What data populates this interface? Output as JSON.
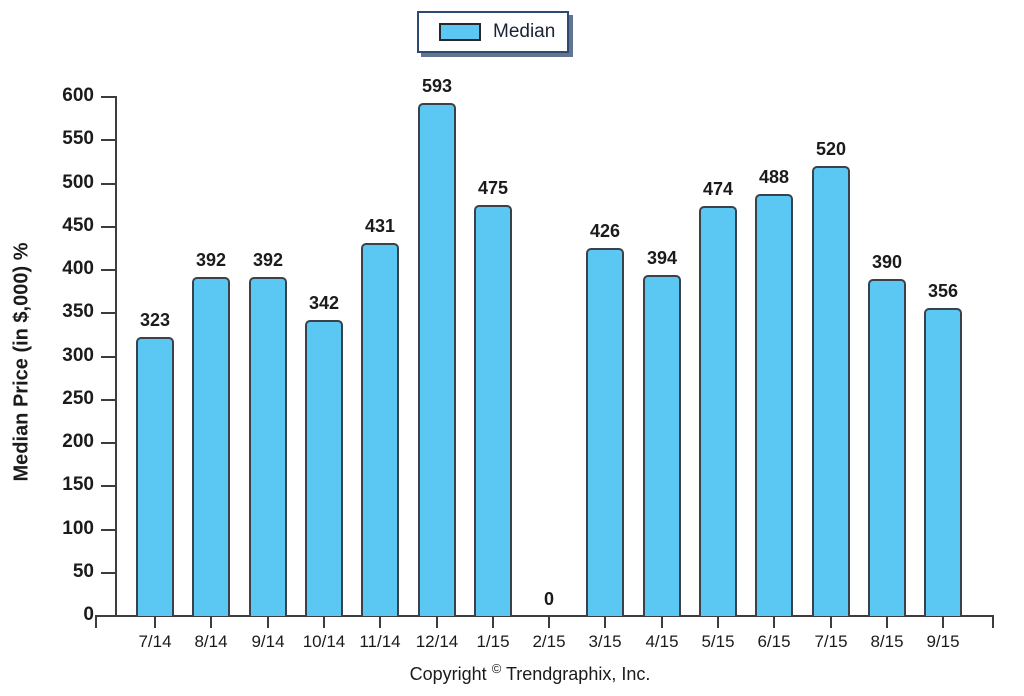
{
  "chart_data": {
    "type": "bar",
    "title": "",
    "categories": [
      "7/14",
      "8/14",
      "9/14",
      "10/14",
      "11/14",
      "12/14",
      "1/15",
      "2/15",
      "3/15",
      "4/15",
      "5/15",
      "6/15",
      "7/15",
      "8/15",
      "9/15"
    ],
    "series": [
      {
        "name": "Median",
        "values": [
          323,
          392,
          392,
          342,
          431,
          593,
          475,
          0,
          426,
          394,
          474,
          488,
          520,
          390,
          356
        ]
      }
    ],
    "xlabel": "",
    "ylabel": "Median Price (in $,000) %",
    "ylim": [
      0,
      600
    ],
    "ytick_step": 50,
    "grid": false,
    "legend_position": "top-center",
    "data_labels": true,
    "colors": {
      "bar_fill": "#5bc8f4",
      "bar_border": "#3b4148",
      "axis": "#3c3c3c",
      "text": "#1b1b1b",
      "legend_border": "#2e4a73"
    }
  },
  "legend": {
    "label": "Median"
  },
  "footer": {
    "copyright_prefix": "Copyright",
    "copyright_symbol": "©",
    "copyright_suffix": "Trendgraphix, Inc."
  }
}
